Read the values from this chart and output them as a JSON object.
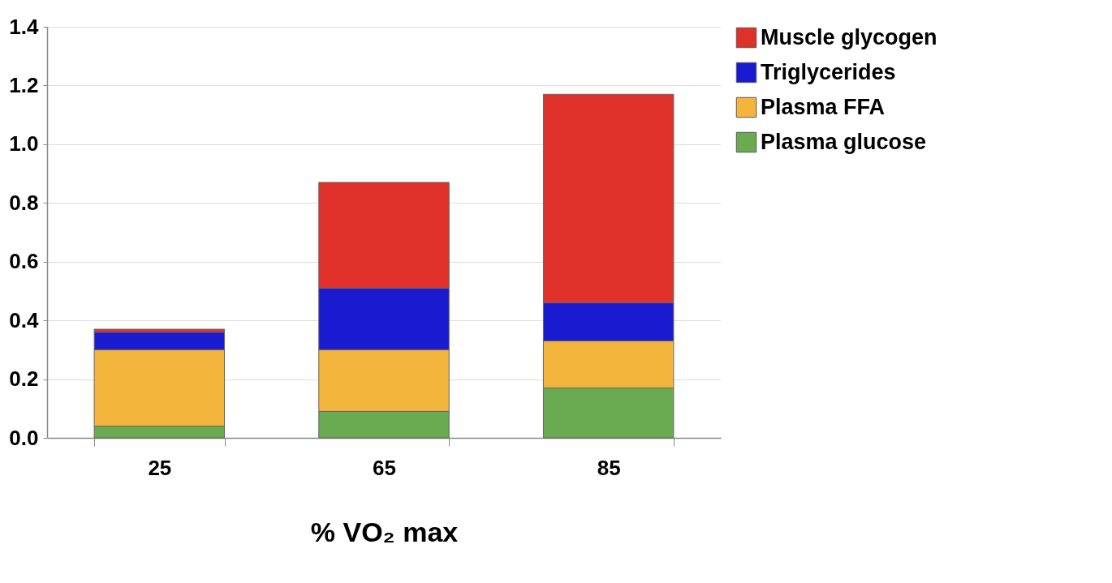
{
  "chart_data": {
    "type": "bar",
    "stacked": true,
    "xlabel": "% VO₂ max",
    "categories": [
      "25",
      "65",
      "85"
    ],
    "series": [
      {
        "name": "Plasma glucose",
        "color": "#6aaa50",
        "values": [
          0.04,
          0.09,
          0.17
        ]
      },
      {
        "name": "Plasma FFA",
        "color": "#f4b53c",
        "values": [
          0.26,
          0.21,
          0.16
        ]
      },
      {
        "name": "Triglycerides",
        "color": "#1a1ad0",
        "values": [
          0.06,
          0.21,
          0.13
        ]
      },
      {
        "name": "Muscle glycogen",
        "color": "#e0302a",
        "values": [
          0.01,
          0.36,
          0.71
        ]
      }
    ],
    "ylim": [
      0,
      1.4
    ],
    "yticks": [
      {
        "value": 0,
        "label": "0.0"
      },
      {
        "value": 0.2,
        "label": "0.2"
      },
      {
        "value": 0.4,
        "label": "0.4"
      },
      {
        "value": 0.6,
        "label": "0.6"
      },
      {
        "value": 0.8,
        "label": "0.8"
      },
      {
        "value": 1,
        "label": "1.0"
      },
      {
        "value": 1.2,
        "label": "1.2"
      },
      {
        "value": 1.4,
        "label": "1.4"
      }
    ],
    "grid": "y",
    "legend": "right"
  }
}
